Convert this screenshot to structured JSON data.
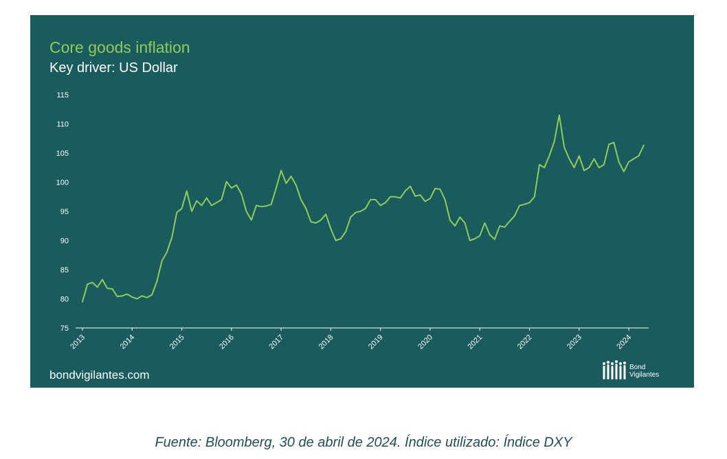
{
  "chart_data": {
    "type": "line",
    "title": "Core goods inflation",
    "subtitle": "Key driver: US Dollar",
    "xlabel": "",
    "ylabel": "",
    "ylim": [
      75,
      115
    ],
    "yticks": [
      "75",
      "80",
      "85",
      "90",
      "95",
      "100",
      "105",
      "110",
      "115"
    ],
    "xticks": [
      "2013",
      "2014",
      "2015",
      "2016",
      "2017",
      "2018",
      "2019",
      "2020",
      "2021",
      "2022",
      "2023",
      "2024"
    ],
    "xlim": [
      2013.0,
      2024.4
    ],
    "grid": false,
    "legend": "none",
    "line_color": "#8fcc5a",
    "series": [
      {
        "x": [
          2013.0,
          2013.1,
          2013.2,
          2013.3,
          2013.4,
          2013.5,
          2013.6,
          2013.7,
          2013.8,
          2013.9,
          2014.0,
          2014.1,
          2014.2,
          2014.3,
          2014.4,
          2014.5,
          2014.6,
          2014.7,
          2014.8,
          2014.9,
          2015.0,
          2015.1,
          2015.2,
          2015.3,
          2015.4,
          2015.5,
          2015.6,
          2015.7,
          2015.8,
          2015.9,
          2016.0,
          2016.1,
          2016.2,
          2016.3,
          2016.4,
          2016.5,
          2016.6,
          2016.7,
          2016.8,
          2016.9,
          2017.0,
          2017.1,
          2017.2,
          2017.3,
          2017.4,
          2017.5,
          2017.6,
          2017.7,
          2017.8,
          2017.9,
          2018.0,
          2018.1,
          2018.2,
          2018.3,
          2018.4,
          2018.5,
          2018.6,
          2018.7,
          2018.8,
          2018.9,
          2019.0,
          2019.1,
          2019.2,
          2019.3,
          2019.4,
          2019.5,
          2019.6,
          2019.7,
          2019.8,
          2019.9,
          2020.0,
          2020.1,
          2020.2,
          2020.3,
          2020.4,
          2020.5,
          2020.6,
          2020.7,
          2020.8,
          2020.9,
          2021.0,
          2021.1,
          2021.2,
          2021.3,
          2021.4,
          2021.5,
          2021.6,
          2021.7,
          2021.8,
          2021.9,
          2022.0,
          2022.1,
          2022.2,
          2022.3,
          2022.4,
          2022.5,
          2022.6,
          2022.7,
          2022.8,
          2022.9,
          2023.0,
          2023.1,
          2023.2,
          2023.3,
          2023.4,
          2023.5,
          2023.6,
          2023.7,
          2023.8,
          2023.9,
          2024.0,
          2024.1,
          2024.2,
          2024.3
        ],
        "values": [
          79.5,
          82.5,
          82.8,
          82.0,
          83.3,
          81.8,
          81.7,
          80.4,
          80.5,
          80.8,
          80.3,
          80.0,
          80.5,
          80.2,
          80.7,
          83.0,
          86.5,
          88.0,
          90.5,
          94.8,
          95.5,
          98.5,
          95.0,
          96.8,
          96.0,
          97.3,
          96.0,
          96.5,
          97.0,
          100.1,
          99.0,
          99.5,
          98.0,
          95.0,
          93.5,
          96.0,
          95.8,
          95.9,
          96.2,
          99.0,
          102.0,
          99.8,
          101.0,
          99.5,
          97.0,
          95.5,
          93.2,
          93.0,
          93.5,
          94.5,
          92.0,
          90.0,
          90.3,
          91.5,
          94.0,
          94.8,
          95.0,
          95.5,
          97.0,
          97.0,
          96.0,
          96.5,
          97.5,
          97.5,
          97.3,
          98.5,
          99.3,
          97.6,
          97.8,
          96.7,
          97.2,
          98.9,
          98.8,
          97.0,
          93.5,
          92.5,
          94.0,
          93.0,
          90.0,
          90.3,
          90.8,
          93.0,
          91.0,
          90.2,
          92.5,
          92.3,
          93.3,
          94.2,
          96.0,
          96.2,
          96.5,
          97.5,
          103.0,
          102.5,
          104.5,
          107.0,
          111.5,
          106.0,
          104.0,
          102.5,
          104.5,
          102.0,
          102.5,
          104.0,
          102.5,
          103.0,
          106.5,
          106.8,
          103.5,
          101.8,
          103.5,
          104.0,
          104.5,
          106.3
        ]
      }
    ]
  },
  "branding": {
    "website": "bondvigilantes.com",
    "logo_line1": "Bond",
    "logo_line2": "Vigilantes"
  },
  "caption": "Fuente: Bloomberg, 30 de abril de 2024. Índice utilizado: Índice DXY"
}
